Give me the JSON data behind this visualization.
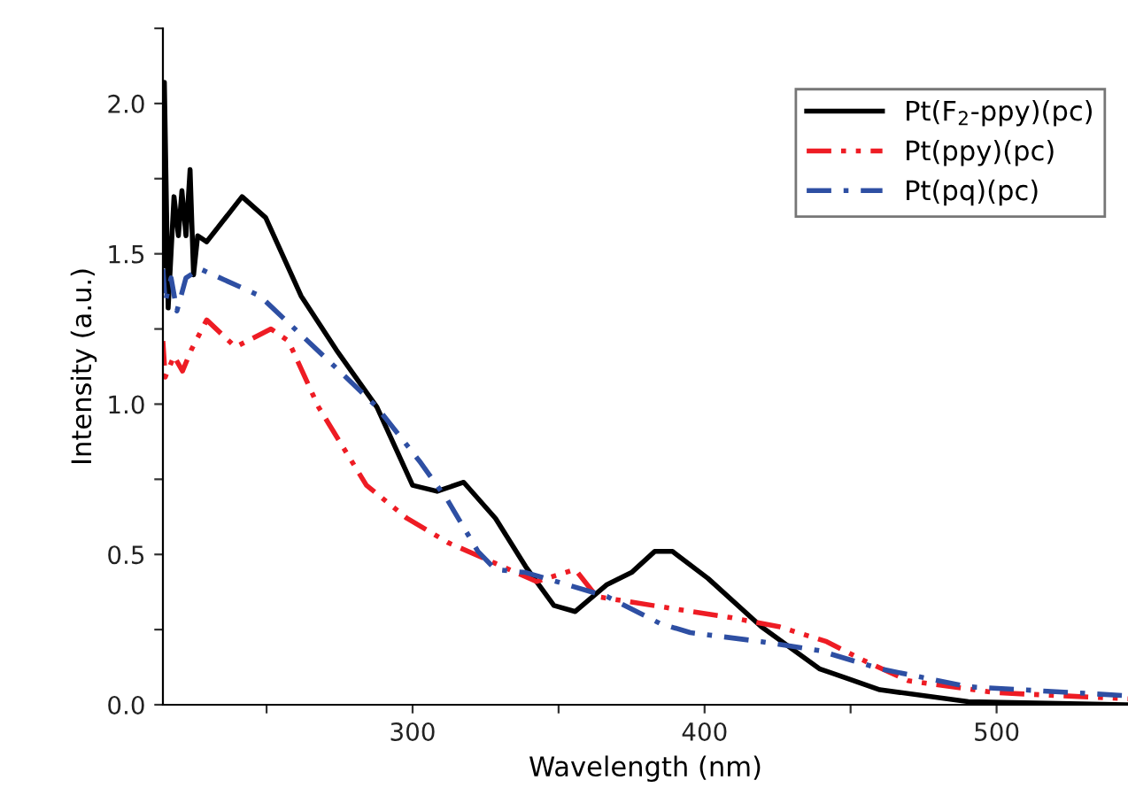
{
  "chart_data": {
    "type": "line",
    "xlabel": "Wavelength (nm)",
    "ylabel": "Intensity (a.u.)",
    "xlim": [
      214.5,
      545
    ],
    "ylim": [
      0,
      2.25
    ],
    "xticks": [
      {
        "value": 250,
        "label": null
      },
      300,
      {
        "value": 350,
        "label": null
      },
      400,
      {
        "value": 450,
        "label": null
      },
      500
    ],
    "yticks": [
      {
        "value": 0,
        "label": "0.0"
      },
      {
        "value": 0.25,
        "label": null
      },
      {
        "value": 0.5,
        "label": "0.5"
      },
      {
        "value": 0.75,
        "label": null
      },
      {
        "value": 1.0,
        "label": "1.0"
      },
      {
        "value": 1.25,
        "label": null
      },
      {
        "value": 1.5,
        "label": "1.5"
      },
      {
        "value": 1.75,
        "label": null
      },
      {
        "value": 2.0,
        "label": "2.0"
      },
      {
        "value": 2.25,
        "label": null
      }
    ],
    "grid": false,
    "legend": "top right",
    "series": [
      {
        "name": "Pt(F$_{2}$-ppy)(pc)",
        "color": "#000000",
        "line_style": "solid",
        "x": [
          214.5,
          215,
          216.3,
          218.3,
          219.8,
          221,
          222.4,
          223.8,
          225,
          226.4,
          229.5,
          241.6,
          249.7,
          261.8,
          273.9,
          287.8,
          300,
          308.4,
          317.5,
          328.4,
          338.7,
          348.4,
          355.7,
          366.6,
          375,
          382.9,
          389,
          401.2,
          419.4,
          439.3,
          460,
          490.3,
          545
        ],
        "values": [
          1.46,
          2.07,
          1.32,
          1.69,
          1.56,
          1.71,
          1.56,
          1.78,
          1.43,
          1.56,
          1.54,
          1.69,
          1.62,
          1.36,
          1.18,
          0.99,
          0.73,
          0.71,
          0.74,
          0.62,
          0.46,
          0.33,
          0.31,
          0.4,
          0.44,
          0.51,
          0.51,
          0.42,
          0.26,
          0.12,
          0.05,
          0.01,
          0.0
        ]
      },
      {
        "name": "Pt(ppy)(pc)",
        "color": "#ee1c24",
        "line_style": "dashdotdot",
        "x": [
          214.5,
          215.3,
          218.3,
          221.2,
          224.2,
          229.5,
          239.3,
          251.5,
          257.5,
          267.8,
          284.2,
          298.1,
          312,
          328.4,
          342.4,
          355.7,
          363,
          389,
          409,
          425.4,
          441.8,
          453.9,
          469.7,
          500,
          545
        ],
        "values": [
          1.21,
          1.09,
          1.16,
          1.11,
          1.18,
          1.28,
          1.19,
          1.25,
          1.21,
          0.99,
          0.73,
          0.62,
          0.54,
          0.47,
          0.41,
          0.45,
          0.36,
          0.32,
          0.29,
          0.26,
          0.21,
          0.15,
          0.08,
          0.04,
          0.02
        ]
      },
      {
        "name": "Pt(pq)(pc)",
        "color": "#2e4fa3",
        "line_style": "dashdot",
        "x": [
          214.5,
          215.3,
          217.3,
          219.3,
          222.4,
          227.2,
          247.7,
          257.5,
          273.9,
          287.8,
          302.4,
          312,
          322.4,
          328.4,
          338.7,
          352.7,
          366.6,
          384.8,
          395.1,
          419.4,
          439.3,
          460,
          490.3,
          545
        ],
        "values": [
          1.45,
          1.34,
          1.42,
          1.31,
          1.42,
          1.45,
          1.36,
          1.27,
          1.12,
          0.99,
          0.81,
          0.68,
          0.51,
          0.45,
          0.44,
          0.4,
          0.36,
          0.27,
          0.24,
          0.21,
          0.18,
          0.12,
          0.06,
          0.03
        ]
      }
    ]
  }
}
